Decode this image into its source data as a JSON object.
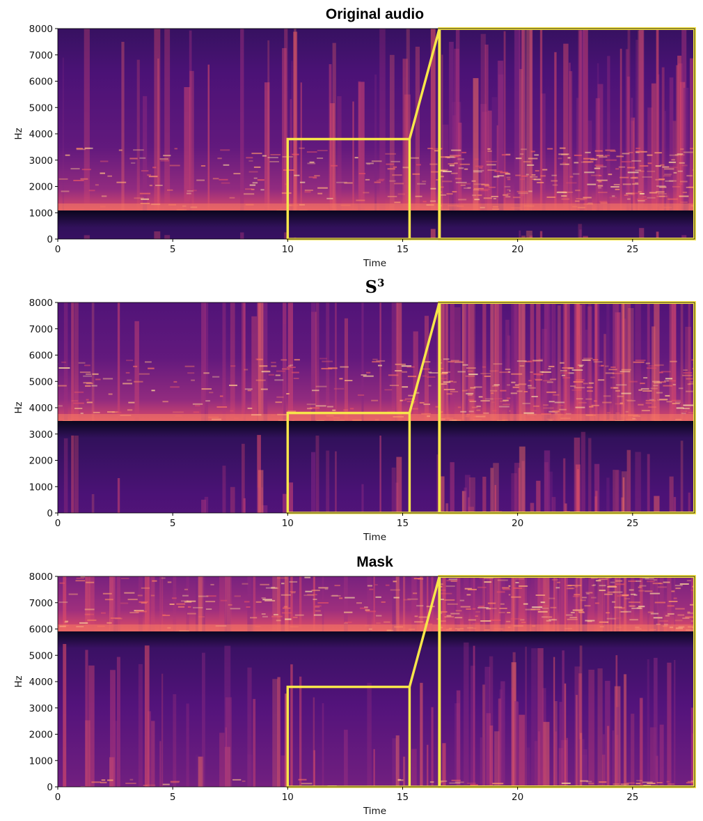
{
  "figure": {
    "zoom_box_color": "#f7e64a",
    "colormap": "magma"
  },
  "chart_data": [
    {
      "type": "heatmap",
      "title": "Original audio",
      "title_style": "bold",
      "xlabel": "Time",
      "ylabel": "Hz",
      "xlim": [
        0,
        27.7
      ],
      "ylim": [
        0,
        8000
      ],
      "x_ticks": [
        "0",
        "5",
        "10",
        "15",
        "20",
        "25"
      ],
      "y_ticks": [
        "0",
        "1000",
        "2000",
        "3000",
        "4000",
        "5000",
        "6000",
        "7000",
        "8000"
      ],
      "zoom_region": {
        "x": [
          10,
          15.3
        ],
        "y": [
          0,
          3800
        ]
      },
      "zoom_inset": {
        "x": [
          16.6,
          27.7
        ],
        "y": [
          0,
          8000
        ]
      }
    },
    {
      "type": "heatmap",
      "title": "S",
      "title_superscript": "3",
      "title_style": "math",
      "xlabel": "Time",
      "ylabel": "Hz",
      "xlim": [
        0,
        27.7
      ],
      "ylim": [
        0,
        8000
      ],
      "x_ticks": [
        "0",
        "5",
        "10",
        "15",
        "20",
        "25"
      ],
      "y_ticks": [
        "0",
        "1000",
        "2000",
        "3000",
        "4000",
        "5000",
        "6000",
        "7000",
        "8000"
      ],
      "zoom_region": {
        "x": [
          10,
          15.3
        ],
        "y": [
          0,
          3800
        ]
      },
      "zoom_inset": {
        "x": [
          16.6,
          27.7
        ],
        "y": [
          0,
          8000
        ]
      }
    },
    {
      "type": "heatmap",
      "title": "Mask",
      "title_style": "bold",
      "xlabel": "Time",
      "ylabel": "Hz",
      "xlim": [
        0,
        27.7
      ],
      "ylim": [
        0,
        8000
      ],
      "x_ticks": [
        "0",
        "5",
        "10",
        "15",
        "20",
        "25"
      ],
      "y_ticks": [
        "0",
        "1000",
        "2000",
        "3000",
        "4000",
        "5000",
        "6000",
        "7000",
        "8000"
      ],
      "zoom_region": {
        "x": [
          10,
          15.3
        ],
        "y": [
          0,
          3800
        ]
      },
      "zoom_inset": {
        "x": [
          16.6,
          27.7
        ],
        "y": [
          0,
          8000
        ]
      }
    }
  ]
}
